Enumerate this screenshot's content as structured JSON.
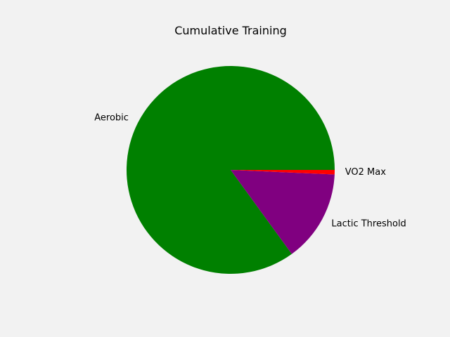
{
  "chart_data": {
    "type": "pie",
    "title": "Cumulative Training",
    "slices": [
      {
        "label": "Aerobic",
        "value": 85.0,
        "color": "#008000"
      },
      {
        "label": "Lactic Threshold",
        "value": 14.3,
        "color": "#800080"
      },
      {
        "label": "VO2 Max",
        "value": 0.7,
        "color": "#ff0000"
      }
    ],
    "legend": false,
    "grid": false
  },
  "colors": {
    "background": "#f2f2f2"
  }
}
